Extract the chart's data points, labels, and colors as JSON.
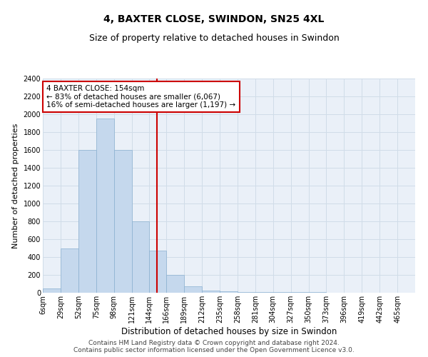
{
  "title": "4, BAXTER CLOSE, SWINDON, SN25 4XL",
  "subtitle": "Size of property relative to detached houses in Swindon",
  "xlabel": "Distribution of detached houses by size in Swindon",
  "ylabel": "Number of detached properties",
  "footer_line1": "Contains HM Land Registry data © Crown copyright and database right 2024.",
  "footer_line2": "Contains public sector information licensed under the Open Government Licence v3.0.",
  "annotation_line1": "4 BAXTER CLOSE: 154sqm",
  "annotation_line2": "← 83% of detached houses are smaller (6,067)",
  "annotation_line3": "16% of semi-detached houses are larger (1,197) →",
  "property_size": 154,
  "bar_color": "#c5d8ed",
  "bar_edge_color": "#8ab0d0",
  "vline_color": "#cc0000",
  "annotation_box_color": "#cc0000",
  "grid_color": "#d0dce8",
  "background_color": "#eaf0f8",
  "bin_labels": [
    "6sqm",
    "29sqm",
    "52sqm",
    "75sqm",
    "98sqm",
    "121sqm",
    "144sqm",
    "166sqm",
    "189sqm",
    "212sqm",
    "235sqm",
    "258sqm",
    "281sqm",
    "304sqm",
    "327sqm",
    "350sqm",
    "373sqm",
    "396sqm",
    "419sqm",
    "442sqm",
    "465sqm"
  ],
  "bin_edges": [
    6,
    29,
    52,
    75,
    98,
    121,
    144,
    166,
    189,
    212,
    235,
    258,
    281,
    304,
    327,
    350,
    373,
    396,
    419,
    442,
    465,
    488
  ],
  "bar_heights": [
    50,
    500,
    1600,
    1950,
    1600,
    800,
    475,
    200,
    75,
    25,
    15,
    10,
    10,
    5,
    5,
    5,
    2,
    1,
    0,
    0,
    0
  ],
  "ylim": [
    0,
    2400
  ],
  "yticks": [
    0,
    200,
    400,
    600,
    800,
    1000,
    1200,
    1400,
    1600,
    1800,
    2000,
    2200,
    2400
  ],
  "title_fontsize": 10,
  "subtitle_fontsize": 9,
  "xlabel_fontsize": 8.5,
  "ylabel_fontsize": 8,
  "tick_fontsize": 7,
  "annotation_fontsize": 7.5,
  "footer_fontsize": 6.5
}
